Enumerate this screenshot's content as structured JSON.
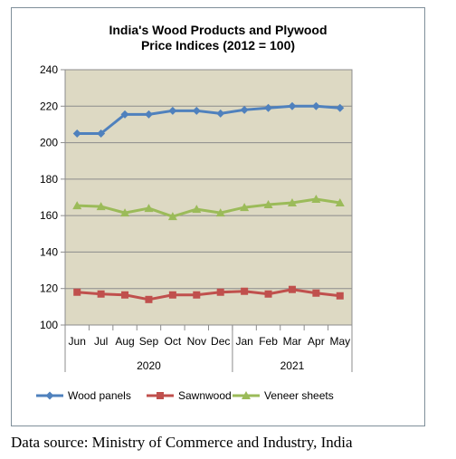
{
  "chart_data": {
    "type": "line",
    "title": "India's Wood Products and Plywood\nPrice Indices (2012 = 100)",
    "xlabel": "",
    "ylabel": "",
    "categories": [
      "Jun",
      "Jul",
      "Aug",
      "Sep",
      "Oct",
      "Nov",
      "Dec",
      "Jan",
      "Feb",
      "Mar",
      "Apr",
      "May"
    ],
    "year_groups": [
      {
        "label": "2020",
        "start": 0,
        "end": 6
      },
      {
        "label": "2021",
        "start": 7,
        "end": 11
      }
    ],
    "yticks": [
      "100",
      "120",
      "140",
      "160",
      "180",
      "200",
      "220",
      "240"
    ],
    "ylim": [
      100,
      240
    ],
    "grid": "horizontal",
    "legend_position": "bottom",
    "plot_background": "#ddd9c3",
    "series": [
      {
        "name": "Wood panels",
        "color": "#4f81bd",
        "marker": "diamond",
        "values": [
          205,
          205,
          215.5,
          215.5,
          217.5,
          217.5,
          216,
          218,
          219,
          220,
          220,
          219
        ]
      },
      {
        "name": "Sawnwood",
        "color": "#c0504d",
        "marker": "square",
        "values": [
          118,
          117,
          116.5,
          114,
          116.5,
          116.5,
          118,
          118.5,
          117,
          119.5,
          117.5,
          116
        ]
      },
      {
        "name": "Veneer sheets",
        "color": "#9bbb59",
        "marker": "triangle",
        "values": [
          165.5,
          165,
          161.5,
          164,
          159.5,
          163.5,
          161.5,
          164.5,
          166,
          167,
          169,
          167
        ]
      }
    ]
  },
  "source": "Data source: Ministry of Commerce and Industry, India"
}
